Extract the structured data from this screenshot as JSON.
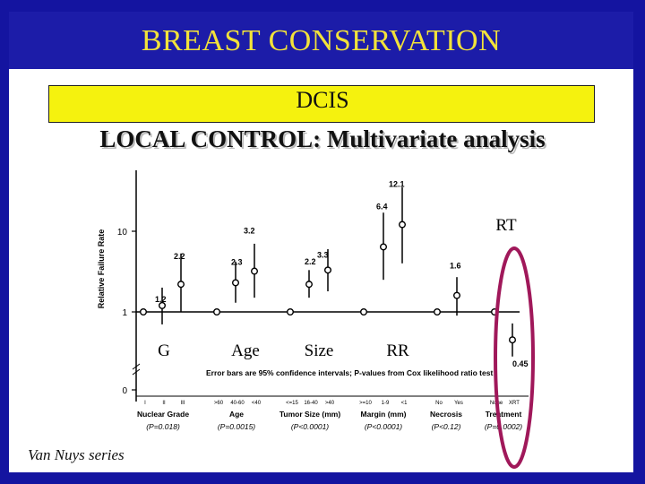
{
  "slide": {
    "title": "BREAST CONSERVATION",
    "subtitle_line1": "DCIS",
    "subtitle_line2": "LOCAL CONTROL: Multivariate analysis",
    "footer": "Van Nuys series",
    "colors": {
      "background": "#1414a0",
      "title_text": "#f2e23a",
      "subtitle_box": "#f5f20e",
      "highlight_oval": "#a0185a"
    }
  },
  "chart_data": {
    "type": "scatter",
    "ylabel": "Relative Failure Rate",
    "y_ticks": [
      "0",
      "1",
      "10"
    ],
    "y_scale": "log (with 0 at base)",
    "caption": "Error bars are 95% confidence intervals; P-values from Cox likelihood ratio test",
    "overlay_labels": [
      "G",
      "Age",
      "Size",
      "RR"
    ],
    "highlight_label": "RT",
    "groups": [
      {
        "name": "Nuclear Grade",
        "p_value": "(P=0.018)",
        "categories": [
          "I",
          "II",
          "III"
        ],
        "points": [
          {
            "category": "I",
            "value": 1,
            "reference": true
          },
          {
            "category": "II",
            "value": 1.2,
            "low": 0.7,
            "high": 2.0,
            "label": "1.2"
          },
          {
            "category": "III",
            "value": 2.2,
            "low": 1.0,
            "high": 5.3,
            "label": "2.2"
          }
        ]
      },
      {
        "name": "Age",
        "p_value": "(P=0.0015)",
        "categories": [
          ">60",
          "40-60",
          "<40"
        ],
        "points": [
          {
            "category": ">60",
            "value": 1,
            "reference": true
          },
          {
            "category": "40-60",
            "value": 2.3,
            "low": 1.3,
            "high": 4.2,
            "label": "2.3"
          },
          {
            "category": "<40",
            "value": 3.2,
            "low": 1.5,
            "high": 7.0,
            "label": "3.2"
          }
        ]
      },
      {
        "name": "Tumor Size (mm)",
        "p_value": "(P<0.0001)",
        "categories": [
          "<=15",
          "16-40",
          ">40"
        ],
        "points": [
          {
            "category": "<=15",
            "value": 1,
            "reference": true
          },
          {
            "category": "16-40",
            "value": 2.2,
            "low": 1.5,
            "high": 3.3,
            "label": "2.2"
          },
          {
            "category": ">40",
            "value": 3.3,
            "low": 1.8,
            "high": 6.0,
            "label": "3.3"
          }
        ]
      },
      {
        "name": "Margin (mm)",
        "p_value": "(P<0.0001)",
        "categories": [
          ">=10",
          "1-9",
          "<1"
        ],
        "points": [
          {
            "category": ">=10",
            "value": 1,
            "reference": true
          },
          {
            "category": "1-9",
            "value": 6.4,
            "low": 2.5,
            "high": 17,
            "label": "6.4"
          },
          {
            "category": "<1",
            "value": 12.1,
            "low": 4.0,
            "high": 35,
            "label": "12.1"
          }
        ]
      },
      {
        "name": "Necrosis",
        "p_value": "(P<0.12)",
        "categories": [
          "No",
          "Yes"
        ],
        "points": [
          {
            "category": "No",
            "value": 1,
            "reference": true
          },
          {
            "category": "Yes",
            "value": 1.6,
            "low": 0.9,
            "high": 2.7,
            "label": "1.6"
          }
        ]
      },
      {
        "name": "Treatment",
        "p_value": "(P=0.0002)",
        "categories": [
          "None",
          "XRT"
        ],
        "points": [
          {
            "category": "None",
            "value": 1,
            "reference": true
          },
          {
            "category": "XRT",
            "value": 0.45,
            "low": 0.28,
            "high": 0.72,
            "label": "0.45"
          }
        ]
      }
    ]
  }
}
